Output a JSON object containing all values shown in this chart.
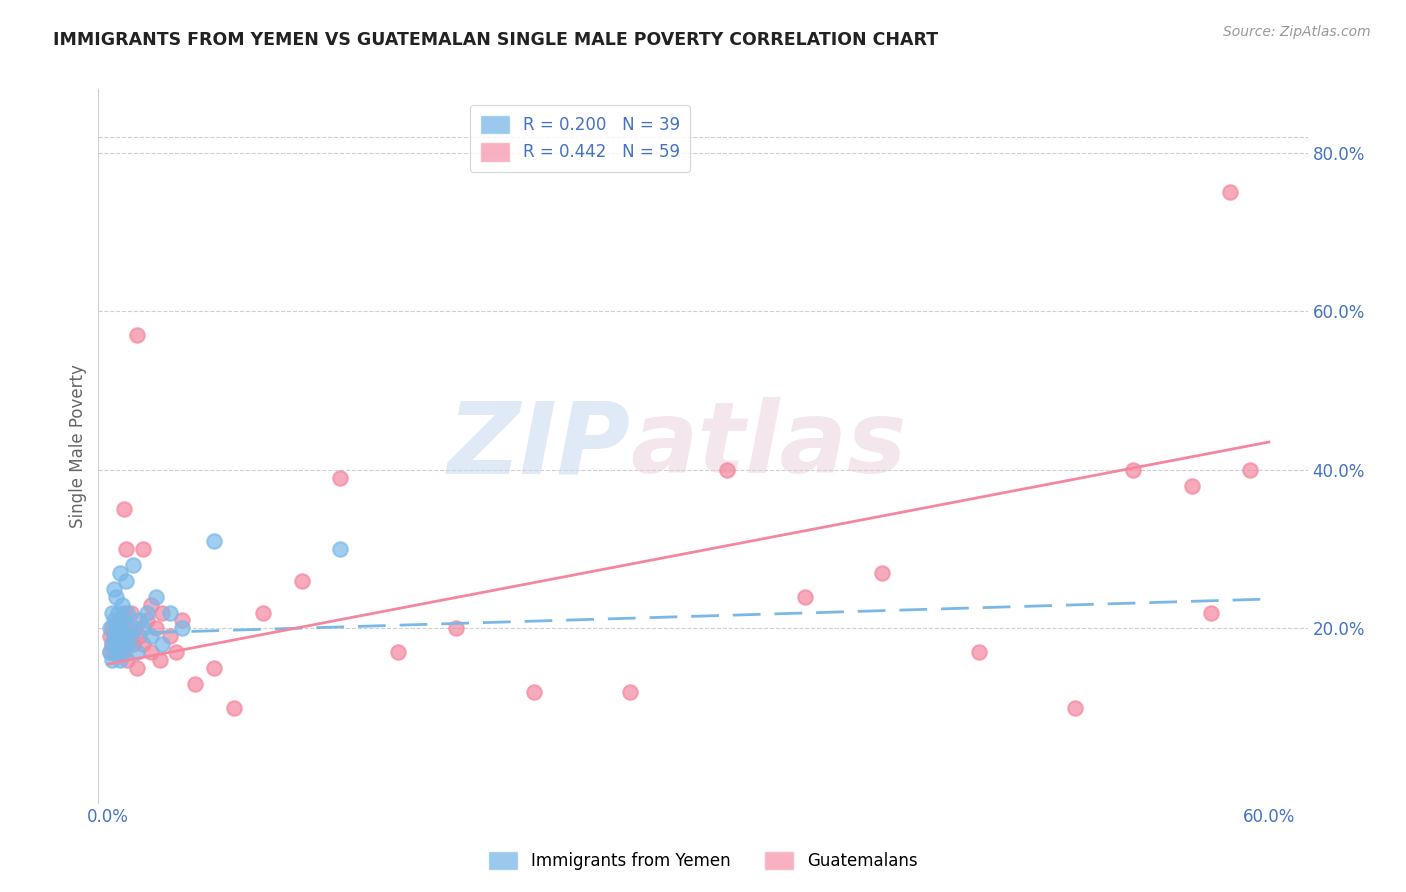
{
  "title": "IMMIGRANTS FROM YEMEN VS GUATEMALAN SINGLE MALE POVERTY CORRELATION CHART",
  "source": "Source: ZipAtlas.com",
  "ylabel": "Single Male Poverty",
  "xlabel_ticks": [
    "0.0%",
    "",
    "",
    "",
    "",
    "",
    "60.0%"
  ],
  "xlabel_vals": [
    0.0,
    0.1,
    0.2,
    0.3,
    0.4,
    0.5,
    0.6
  ],
  "ylabel_ticks": [
    "",
    "20.0%",
    "40.0%",
    "60.0%",
    "80.0%"
  ],
  "ylabel_vals": [
    0.0,
    0.2,
    0.4,
    0.6,
    0.8
  ],
  "xlim": [
    -0.005,
    0.62
  ],
  "ylim": [
    -0.02,
    0.88
  ],
  "legend_r1": "R = 0.200   N = 39",
  "legend_r2": "R = 0.442   N = 59",
  "watermark_zip": "ZIP",
  "watermark_atlas": "atlas",
  "blue_color": "#7ab8e8",
  "pink_color": "#f4879e",
  "axis_label_color": "#4472c4",
  "title_color": "#222222",
  "grid_color": "#d0d0d0",
  "background_color": "#ffffff",
  "yemen_scatter_x": [
    0.001,
    0.001,
    0.002,
    0.002,
    0.002,
    0.003,
    0.003,
    0.003,
    0.004,
    0.004,
    0.004,
    0.005,
    0.005,
    0.005,
    0.006,
    0.006,
    0.006,
    0.007,
    0.007,
    0.008,
    0.008,
    0.009,
    0.009,
    0.01,
    0.01,
    0.011,
    0.012,
    0.013,
    0.015,
    0.016,
    0.018,
    0.02,
    0.022,
    0.025,
    0.028,
    0.032,
    0.038,
    0.055,
    0.12
  ],
  "yemen_scatter_y": [
    0.17,
    0.2,
    0.18,
    0.22,
    0.16,
    0.19,
    0.21,
    0.25,
    0.18,
    0.2,
    0.24,
    0.17,
    0.19,
    0.22,
    0.16,
    0.2,
    0.27,
    0.18,
    0.23,
    0.17,
    0.21,
    0.19,
    0.26,
    0.18,
    0.22,
    0.2,
    0.19,
    0.28,
    0.17,
    0.21,
    0.2,
    0.22,
    0.19,
    0.24,
    0.18,
    0.22,
    0.2,
    0.31,
    0.3
  ],
  "guatemalan_scatter_x": [
    0.001,
    0.001,
    0.002,
    0.002,
    0.003,
    0.003,
    0.004,
    0.004,
    0.005,
    0.005,
    0.006,
    0.006,
    0.007,
    0.007,
    0.008,
    0.008,
    0.009,
    0.01,
    0.01,
    0.011,
    0.012,
    0.013,
    0.014,
    0.015,
    0.016,
    0.018,
    0.02,
    0.022,
    0.025,
    0.028,
    0.032,
    0.038,
    0.045,
    0.055,
    0.065,
    0.08,
    0.1,
    0.12,
    0.15,
    0.18,
    0.22,
    0.27,
    0.32,
    0.36,
    0.4,
    0.45,
    0.5,
    0.53,
    0.56,
    0.57,
    0.58,
    0.59,
    0.01,
    0.012,
    0.015,
    0.018,
    0.022,
    0.027,
    0.035
  ],
  "guatemalan_scatter_y": [
    0.17,
    0.19,
    0.18,
    0.2,
    0.17,
    0.19,
    0.18,
    0.2,
    0.17,
    0.21,
    0.18,
    0.2,
    0.17,
    0.19,
    0.35,
    0.22,
    0.3,
    0.18,
    0.2,
    0.19,
    0.22,
    0.18,
    0.2,
    0.57,
    0.19,
    0.3,
    0.21,
    0.23,
    0.2,
    0.22,
    0.19,
    0.21,
    0.13,
    0.15,
    0.1,
    0.22,
    0.26,
    0.39,
    0.17,
    0.2,
    0.12,
    0.12,
    0.4,
    0.24,
    0.27,
    0.17,
    0.1,
    0.4,
    0.38,
    0.22,
    0.75,
    0.4,
    0.16,
    0.19,
    0.15,
    0.18,
    0.17,
    0.16,
    0.17
  ],
  "yemen_trendline": [
    0.193,
    0.237
  ],
  "guatemalan_trendline": [
    0.155,
    0.435
  ]
}
